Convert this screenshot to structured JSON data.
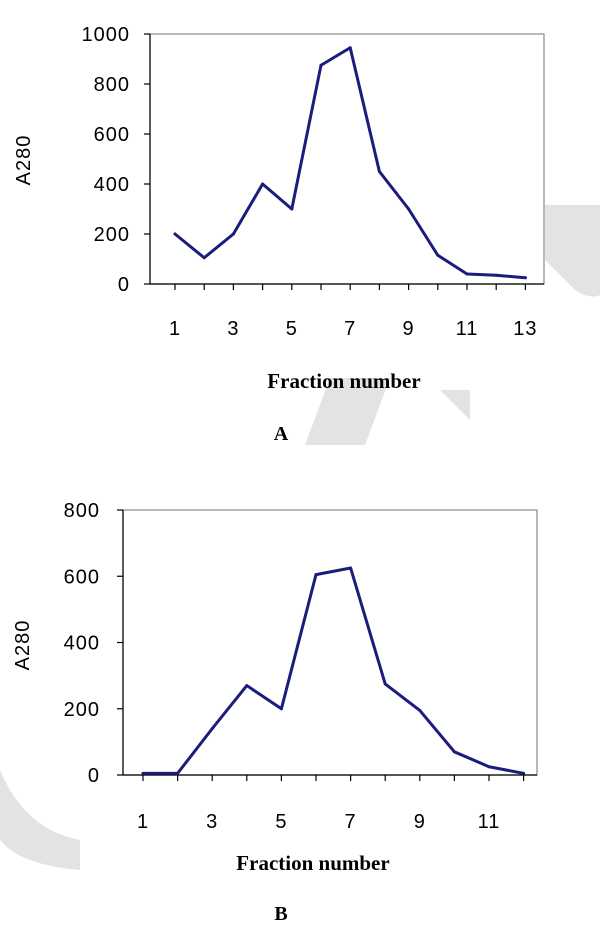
{
  "chart_data": [
    {
      "type": "line",
      "panel_label": "A",
      "xlabel": "Fraction number",
      "ylabel": "A280",
      "x": [
        1,
        2,
        3,
        4,
        5,
        6,
        7,
        8,
        9,
        10,
        11,
        12,
        13
      ],
      "x_tick_labels": [
        "1",
        "3",
        "5",
        "7",
        "9",
        "11",
        "13"
      ],
      "ylim": [
        0,
        1000
      ],
      "y_ticks": [
        0,
        200,
        400,
        600,
        800,
        1000
      ],
      "series": [
        {
          "values": [
            200,
            105,
            200,
            400,
            300,
            875,
            945,
            450,
            300,
            115,
            40,
            35,
            25
          ]
        }
      ],
      "grid": false,
      "line_color": "#1b1c7c"
    },
    {
      "type": "line",
      "panel_label": "B",
      "xlabel": "Fraction number",
      "ylabel": "A280",
      "x": [
        1,
        2,
        3,
        4,
        5,
        6,
        7,
        8,
        9,
        10,
        11,
        12
      ],
      "x_tick_labels": [
        "1",
        "3",
        "5",
        "7",
        "9",
        "11"
      ],
      "ylim": [
        0,
        800
      ],
      "y_ticks": [
        0,
        200,
        400,
        600,
        800
      ],
      "series": [
        {
          "values": [
            5,
            5,
            140,
            270,
            200,
            605,
            625,
            275,
            195,
            70,
            25,
            5
          ]
        }
      ],
      "grid": false,
      "line_color": "#1b1c7c"
    }
  ]
}
